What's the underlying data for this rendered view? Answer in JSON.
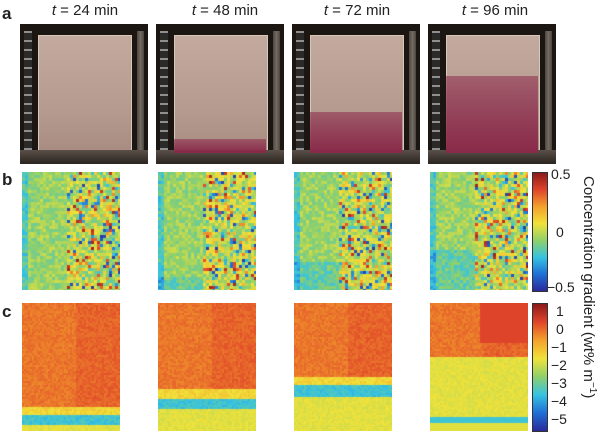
{
  "panels": {
    "a": "a",
    "b": "b",
    "c": "c"
  },
  "time_labels": [
    {
      "var": "t",
      "value": " = 24 min"
    },
    {
      "var": "t",
      "value": " = 48 min"
    },
    {
      "var": "t",
      "value": " = 72 min"
    },
    {
      "var": "t",
      "value": " = 96 min"
    }
  ],
  "colorbar_b": {
    "ticks": [
      "0.5",
      "0",
      "−0.5"
    ],
    "range": [
      -0.5,
      0.5
    ]
  },
  "colorbar_c": {
    "ticks": [
      "1",
      "0",
      "−1",
      "−2",
      "−3",
      "−4",
      "−5"
    ],
    "range": [
      -5,
      1
    ]
  },
  "axis_title": {
    "text": "Concentration gradient (wt% m",
    "sup": "−1",
    "close": ")"
  },
  "colors": {
    "jet": [
      "#2a2a9a",
      "#1f6fd6",
      "#36c3e0",
      "#8fd06a",
      "#f1e23a",
      "#f3a12c",
      "#e0452a",
      "#8c1a1a"
    ],
    "dye": "#8a2a4a",
    "gel": "#b69c90"
  },
  "dye_front_fraction": [
    0.0,
    0.12,
    0.35,
    0.65
  ]
}
